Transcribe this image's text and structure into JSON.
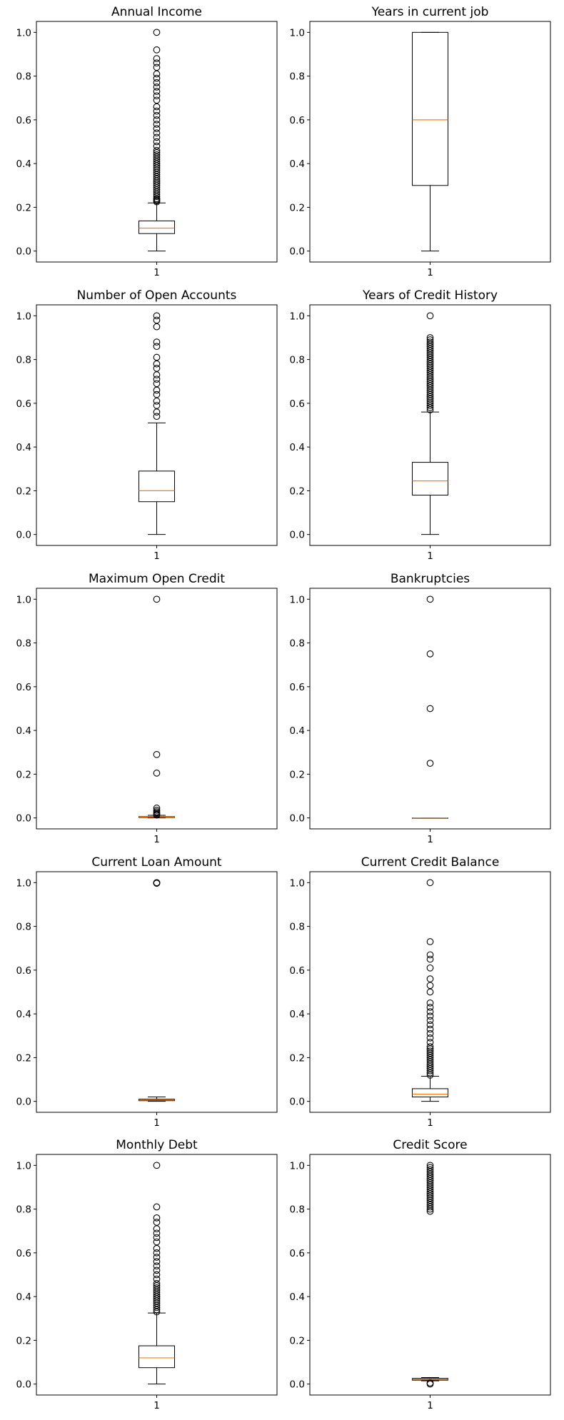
{
  "chart_data": [
    {
      "type": "boxplot",
      "title": "Annual Income",
      "xticks": [
        "1"
      ],
      "ylim": [
        -0.05,
        1.05
      ],
      "yticks": [
        "0.0",
        "0.2",
        "0.4",
        "0.6",
        "0.8",
        "1.0"
      ],
      "whislo": 0.0,
      "q1": 0.08,
      "med": 0.105,
      "q3": 0.138,
      "whishi": 0.22,
      "fliers": [
        1.0,
        0.92,
        0.88,
        0.86,
        0.84,
        0.81,
        0.79,
        0.77,
        0.75,
        0.73,
        0.71,
        0.69,
        0.66,
        0.64,
        0.62,
        0.6,
        0.58,
        0.56,
        0.54,
        0.52,
        0.5,
        0.48,
        0.46,
        0.45,
        0.44,
        0.43,
        0.42,
        0.41,
        0.4,
        0.39,
        0.38,
        0.37,
        0.36,
        0.35,
        0.34,
        0.33,
        0.32,
        0.31,
        0.3,
        0.29,
        0.28,
        0.27,
        0.26,
        0.25,
        0.24,
        0.235,
        0.23,
        0.225
      ]
    },
    {
      "type": "boxplot",
      "title": "Years in current job",
      "xticks": [
        "1"
      ],
      "ylim": [
        -0.05,
        1.05
      ],
      "yticks": [
        "0.0",
        "0.2",
        "0.4",
        "0.6",
        "0.8",
        "1.0"
      ],
      "whislo": 0.0,
      "q1": 0.3,
      "med": 0.6,
      "q3": 1.0,
      "whishi": 1.0,
      "fliers": []
    },
    {
      "type": "boxplot",
      "title": "Number of Open Accounts",
      "xticks": [
        "1"
      ],
      "ylim": [
        -0.05,
        1.05
      ],
      "yticks": [
        "0.0",
        "0.2",
        "0.4",
        "0.6",
        "0.8",
        "1.0"
      ],
      "whislo": 0.0,
      "q1": 0.15,
      "med": 0.2,
      "q3": 0.29,
      "whishi": 0.51,
      "fliers": [
        1.0,
        0.98,
        0.95,
        0.88,
        0.86,
        0.81,
        0.78,
        0.76,
        0.73,
        0.71,
        0.69,
        0.66,
        0.64,
        0.61,
        0.59,
        0.56,
        0.54
      ]
    },
    {
      "type": "boxplot",
      "title": "Years of Credit History",
      "xticks": [
        "1"
      ],
      "ylim": [
        -0.05,
        1.05
      ],
      "yticks": [
        "0.0",
        "0.2",
        "0.4",
        "0.6",
        "0.8",
        "1.0"
      ],
      "whislo": 0.0,
      "q1": 0.18,
      "med": 0.245,
      "q3": 0.33,
      "whishi": 0.56,
      "fliers": [
        1.0,
        0.9,
        0.89,
        0.88,
        0.87,
        0.86,
        0.85,
        0.84,
        0.83,
        0.82,
        0.81,
        0.8,
        0.79,
        0.78,
        0.77,
        0.76,
        0.75,
        0.74,
        0.73,
        0.72,
        0.71,
        0.7,
        0.69,
        0.68,
        0.67,
        0.66,
        0.65,
        0.64,
        0.63,
        0.62,
        0.61,
        0.6,
        0.59,
        0.58,
        0.57
      ]
    },
    {
      "type": "boxplot",
      "title": "Maximum Open Credit",
      "xticks": [
        "1"
      ],
      "ylim": [
        -0.05,
        1.05
      ],
      "yticks": [
        "0.0",
        "0.2",
        "0.4",
        "0.6",
        "0.8",
        "1.0"
      ],
      "whislo": 0.0,
      "q1": 0.002,
      "med": 0.004,
      "q3": 0.006,
      "whishi": 0.012,
      "fliers": [
        1.0,
        0.29,
        0.205,
        0.045,
        0.035,
        0.028,
        0.022,
        0.017,
        0.013
      ]
    },
    {
      "type": "boxplot",
      "title": "Bankruptcies",
      "xticks": [
        "1"
      ],
      "ylim": [
        -0.05,
        1.05
      ],
      "yticks": [
        "0.0",
        "0.2",
        "0.4",
        "0.6",
        "0.8",
        "1.0"
      ],
      "whislo": 0.0,
      "q1": 0.0,
      "med": 0.0,
      "q3": 0.0,
      "whishi": 0.0,
      "fliers": [
        1.0,
        0.75,
        0.5,
        0.25
      ]
    },
    {
      "type": "boxplot",
      "title": "Current Loan Amount",
      "xticks": [
        "1"
      ],
      "ylim": [
        -0.05,
        1.05
      ],
      "yticks": [
        "0.0",
        "0.2",
        "0.4",
        "0.6",
        "0.8",
        "1.0"
      ],
      "whislo": 0.0,
      "q1": 0.003,
      "med": 0.006,
      "q3": 0.01,
      "whishi": 0.02,
      "fliers": [
        1.0,
        0.999,
        0.998,
        0.997
      ]
    },
    {
      "type": "boxplot",
      "title": "Current Credit Balance",
      "xticks": [
        "1"
      ],
      "ylim": [
        -0.05,
        1.05
      ],
      "yticks": [
        "0.0",
        "0.2",
        "0.4",
        "0.6",
        "0.8",
        "1.0"
      ],
      "whislo": 0.0,
      "q1": 0.02,
      "med": 0.033,
      "q3": 0.058,
      "whishi": 0.115,
      "fliers": [
        1.0,
        0.73,
        0.67,
        0.65,
        0.61,
        0.56,
        0.53,
        0.5,
        0.45,
        0.43,
        0.41,
        0.39,
        0.37,
        0.35,
        0.33,
        0.31,
        0.29,
        0.27,
        0.25,
        0.24,
        0.23,
        0.22,
        0.21,
        0.2,
        0.19,
        0.18,
        0.17,
        0.16,
        0.15,
        0.14,
        0.13,
        0.12
      ]
    },
    {
      "type": "boxplot",
      "title": "Monthly Debt",
      "xticks": [
        "1"
      ],
      "ylim": [
        -0.05,
        1.05
      ],
      "yticks": [
        "0.0",
        "0.2",
        "0.4",
        "0.6",
        "0.8",
        "1.0"
      ],
      "whislo": 0.0,
      "q1": 0.075,
      "med": 0.12,
      "q3": 0.175,
      "whishi": 0.325,
      "fliers": [
        1.0,
        0.81,
        0.76,
        0.74,
        0.71,
        0.69,
        0.67,
        0.65,
        0.62,
        0.6,
        0.58,
        0.56,
        0.54,
        0.52,
        0.5,
        0.48,
        0.46,
        0.45,
        0.44,
        0.43,
        0.42,
        0.41,
        0.4,
        0.39,
        0.38,
        0.37,
        0.36,
        0.35,
        0.34,
        0.33
      ]
    },
    {
      "type": "boxplot",
      "title": "Credit Score",
      "xticks": [
        "1"
      ],
      "ylim": [
        -0.05,
        1.05
      ],
      "yticks": [
        "0.0",
        "0.2",
        "0.4",
        "0.6",
        "0.8",
        "1.0"
      ],
      "whislo": 0.015,
      "q1": 0.018,
      "med": 0.022,
      "q3": 0.026,
      "whishi": 0.03,
      "fliers": [
        1.0,
        0.99,
        0.98,
        0.97,
        0.96,
        0.95,
        0.94,
        0.93,
        0.92,
        0.91,
        0.9,
        0.89,
        0.88,
        0.87,
        0.86,
        0.85,
        0.84,
        0.83,
        0.82,
        0.81,
        0.8,
        0.79,
        0.005,
        0.0
      ]
    }
  ],
  "style": {
    "median_color": "#ff7f0e",
    "line_color": "#000000",
    "background": "#ffffff"
  }
}
